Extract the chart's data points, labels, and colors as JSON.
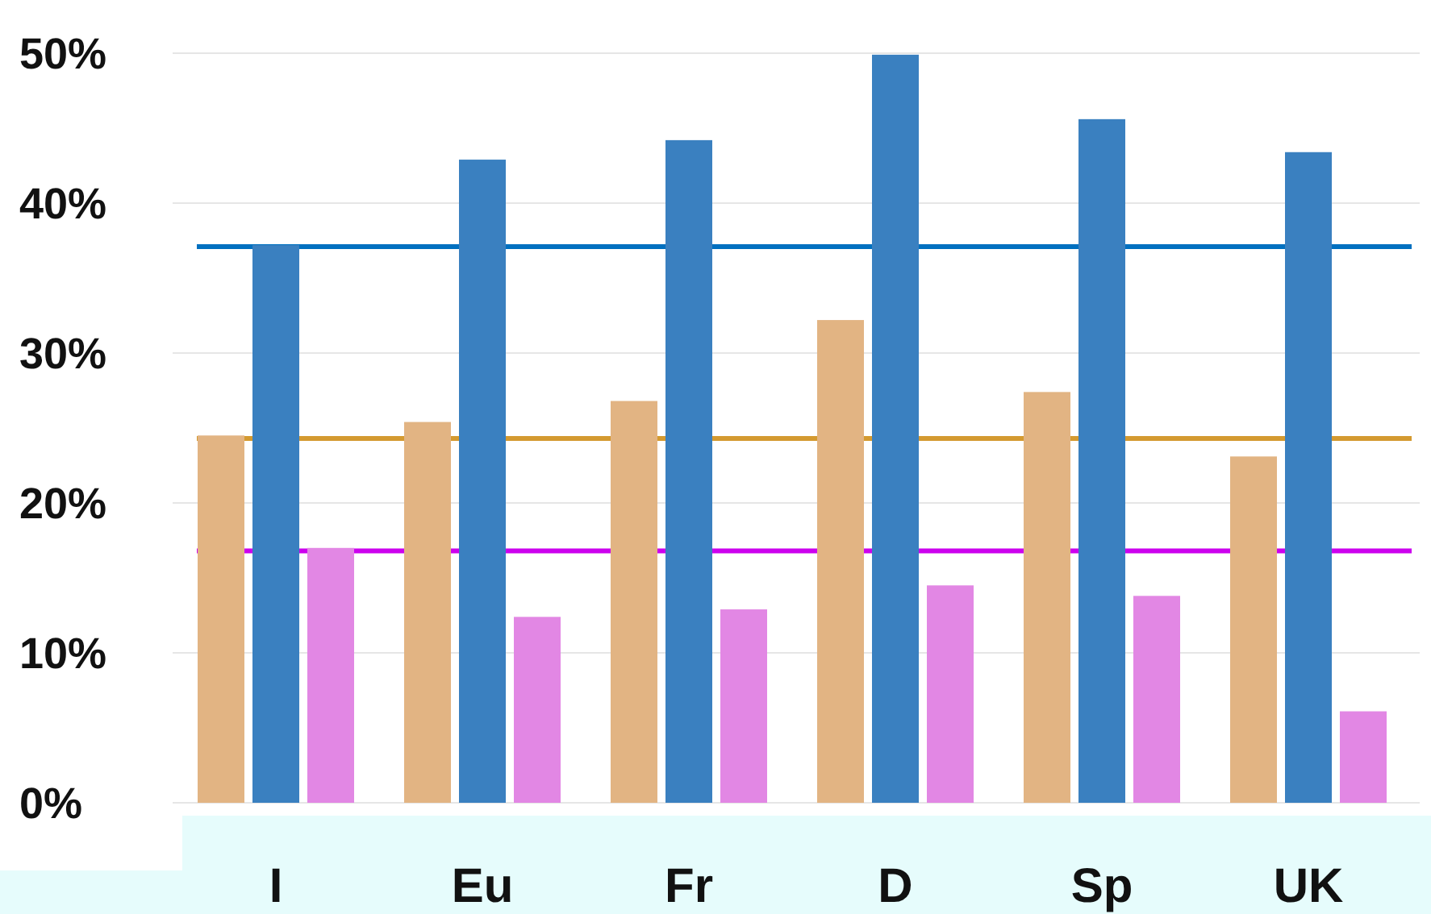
{
  "chart_data": {
    "type": "bar",
    "categories": [
      "I",
      "Eu",
      "Fr",
      "D",
      "Sp",
      "UK"
    ],
    "series": [
      {
        "color": "#e2b483",
        "values": [
          24.5,
          25.4,
          26.8,
          32.2,
          27.4,
          23.1
        ]
      },
      {
        "color": "#3a80c0",
        "values": [
          37.2,
          42.9,
          44.2,
          49.9,
          45.6,
          43.4
        ]
      },
      {
        "color": "#e287e4",
        "values": [
          17.0,
          12.4,
          12.9,
          14.5,
          13.8,
          6.1
        ]
      }
    ],
    "ylim": [
      0,
      50
    ],
    "yticks": [
      {
        "value": 0,
        "label": "0%"
      },
      {
        "value": 10,
        "label": "10%"
      },
      {
        "value": 20,
        "label": "20%"
      },
      {
        "value": 30,
        "label": "30%"
      },
      {
        "value": 40,
        "label": "40%"
      },
      {
        "value": 50,
        "label": "50%"
      }
    ],
    "grid": "y",
    "ref_lines": [
      {
        "axis": "y",
        "value": 37.1,
        "color": "#0070c0"
      },
      {
        "axis": "y",
        "value": 24.3,
        "color": "#d49a30"
      },
      {
        "axis": "y",
        "value": 16.8,
        "color": "#cc00ee"
      }
    ]
  }
}
